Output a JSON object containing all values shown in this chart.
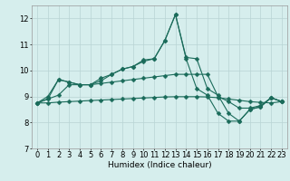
{
  "x": [
    0,
    1,
    2,
    3,
    4,
    5,
    6,
    7,
    8,
    9,
    10,
    11,
    12,
    13,
    14,
    15,
    16,
    17,
    18,
    19,
    20,
    21,
    22,
    23
  ],
  "series": [
    [
      8.75,
      9.0,
      9.65,
      9.55,
      9.45,
      9.45,
      9.7,
      9.85,
      10.05,
      10.15,
      10.35,
      10.45,
      11.15,
      12.15,
      10.5,
      10.45,
      9.3,
      9.05,
      8.35,
      8.05,
      8.5,
      8.6,
      8.95,
      8.8
    ],
    [
      8.75,
      8.9,
      9.65,
      9.55,
      9.45,
      9.45,
      9.6,
      9.85,
      10.05,
      10.15,
      10.4,
      10.45,
      11.15,
      12.15,
      10.45,
      9.3,
      9.05,
      8.35,
      8.05,
      8.05,
      8.5,
      8.6,
      8.95,
      8.8
    ],
    [
      8.75,
      8.9,
      9.05,
      9.45,
      9.45,
      9.45,
      9.5,
      9.55,
      9.6,
      9.65,
      9.7,
      9.75,
      9.8,
      9.85,
      9.85,
      9.85,
      9.85,
      9.0,
      8.8,
      8.55,
      8.55,
      8.65,
      8.95,
      8.8
    ],
    [
      8.75,
      8.75,
      8.78,
      8.8,
      8.82,
      8.84,
      8.86,
      8.88,
      8.9,
      8.92,
      8.94,
      8.96,
      8.98,
      8.99,
      8.99,
      8.99,
      8.98,
      8.95,
      8.9,
      8.85,
      8.8,
      8.77,
      8.75,
      8.8
    ]
  ],
  "line_color": "#1a6b5a",
  "marker": "D",
  "markersize": 2.5,
  "linewidth": 0.8,
  "bg_color": "#d6eeed",
  "grid_color": "#b8d4d4",
  "xlabel": "Humidex (Indice chaleur)",
  "ylabel_ticks": [
    7,
    8,
    9,
    10,
    11,
    12
  ],
  "xlim": [
    -0.5,
    23.5
  ],
  "ylim": [
    7,
    12.5
  ],
  "xlabel_fontsize": 6.5,
  "tick_fontsize": 6.0
}
